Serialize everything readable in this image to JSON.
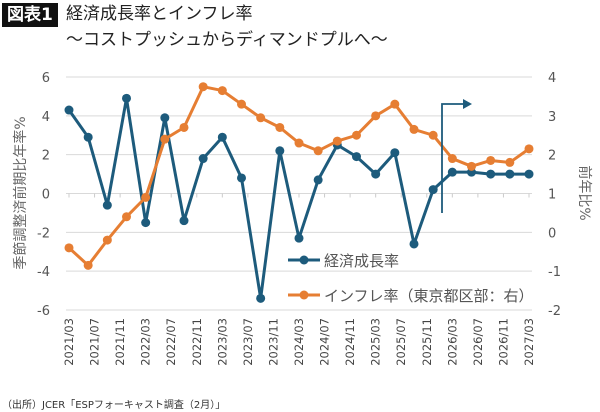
{
  "header": {
    "badge": "図表1",
    "title": "経済成長率とインフレ率",
    "subtitle": "〜コストプッシュからディマンドプルへ〜"
  },
  "source": "（出所）JCER「ESPフォーキャスト調査（2月）」",
  "chart_data": {
    "type": "line",
    "title": "経済成長率とインフレ率",
    "x_tick_labels": [
      "2021/03",
      "2021/07",
      "2021/11",
      "2022/03",
      "2022/07",
      "2022/11",
      "2023/03",
      "2023/07",
      "2023/11",
      "2024/03",
      "2024/07",
      "2024/11",
      "2025/03",
      "2025/07",
      "2025/11",
      "2026/03",
      "2026/07",
      "2026/11",
      "2027/03"
    ],
    "x_range": [
      "2021/03",
      "2027/03"
    ],
    "ylabel_left": "季節調整済前期比年率%",
    "ylabel_right": "前年比%",
    "ylim_left": [
      -6,
      6
    ],
    "yticks_left": [
      6,
      4,
      2,
      0,
      -2,
      -4,
      -6
    ],
    "ylim_right": [
      -2,
      4
    ],
    "yticks_right": [
      4,
      3,
      2,
      1,
      0,
      -1,
      -2
    ],
    "grid": true,
    "legend_position": "bottom-center",
    "series": [
      {
        "name": "経済成長率",
        "axis": "left",
        "color": "#1d5b7c",
        "values": [
          4.3,
          2.9,
          -0.6,
          4.9,
          -1.5,
          3.9,
          -1.4,
          1.8,
          2.9,
          0.8,
          -5.4,
          2.2,
          -2.3,
          0.7,
          2.5,
          1.9,
          1.0,
          2.1,
          -2.6,
          0.2,
          1.1,
          1.1,
          1.0,
          1.0,
          1.0
        ]
      },
      {
        "name": "インフレ率（東京都区部：右）",
        "axis": "right",
        "color": "#e67e33",
        "values": [
          -0.4,
          -0.85,
          -0.2,
          0.4,
          0.9,
          2.4,
          2.7,
          3.75,
          3.65,
          3.3,
          2.95,
          2.7,
          2.3,
          2.1,
          2.35,
          2.5,
          3.0,
          3.3,
          2.65,
          2.5,
          1.9,
          1.7,
          1.85,
          1.8,
          2.15
        ]
      }
    ],
    "annotation": "forecast-arrow"
  }
}
